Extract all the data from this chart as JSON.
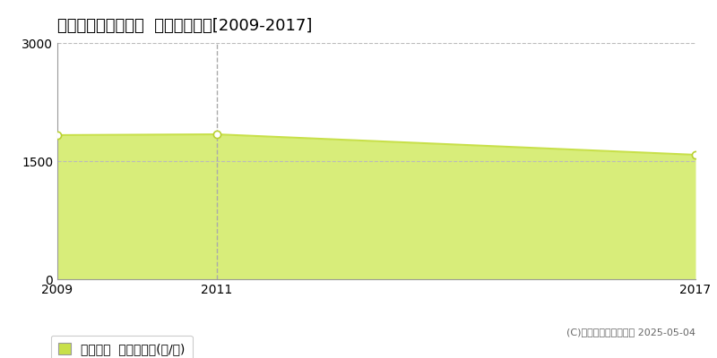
{
  "title": "東田川郡庄内町福原  農地価格推移[2009-2017]",
  "years": [
    2009,
    2011,
    2017
  ],
  "values": [
    1830,
    1840,
    1580
  ],
  "line_color": "#c8e04a",
  "fill_color": "#d8ed7a",
  "fill_alpha": 1.0,
  "marker_color": "#ffffff",
  "marker_edge_color": "#b8d030",
  "vline_year": 2011,
  "vline_color": "#aaaaaa",
  "hgrid_color": "#bbbbbb",
  "ylim": [
    0,
    3000
  ],
  "yticks": [
    0,
    1500,
    3000
  ],
  "xticks": [
    2009,
    2011,
    2017
  ],
  "legend_label": "農地価格  平均坪単価(円/坪)",
  "legend_color": "#c8e04a",
  "copyright_text": "(C)土地価格ドットコム 2025-05-04",
  "bg_color": "#ffffff",
  "plot_bg_color": "#ffffff",
  "title_fontsize": 13,
  "tick_fontsize": 10,
  "legend_fontsize": 10,
  "copyright_fontsize": 8
}
